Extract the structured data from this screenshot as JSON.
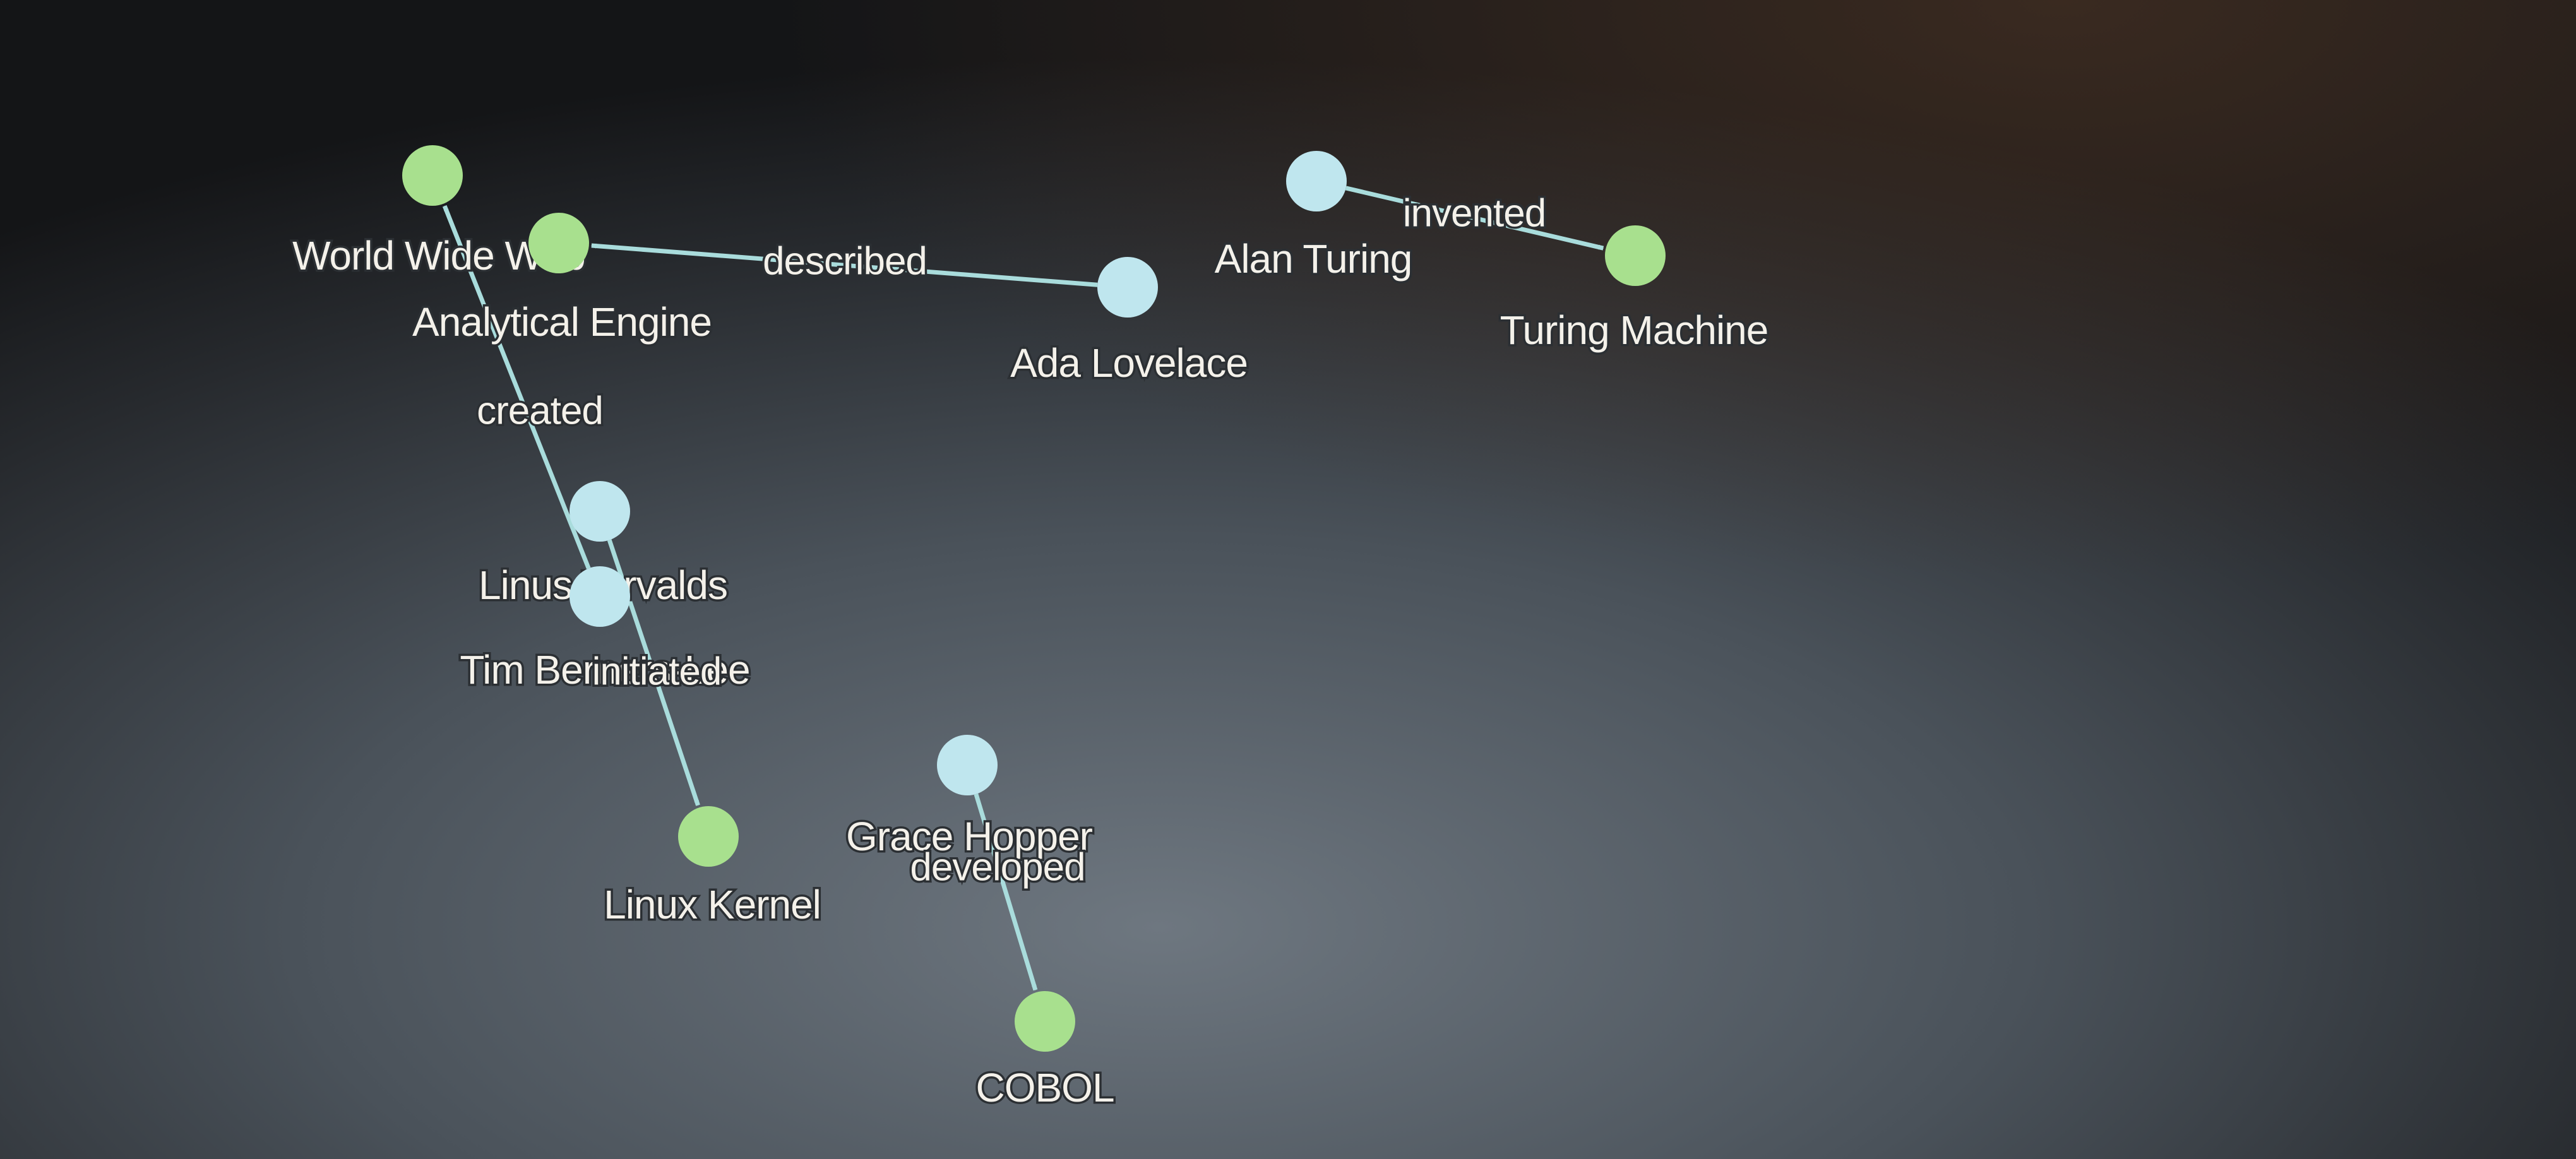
{
  "colors": {
    "person_node": "#bfe6ee",
    "concept_node": "#a8e08e",
    "edge": "#a9dcdc",
    "label_text": "#f4f1ea"
  },
  "graph": {
    "nodes": [
      {
        "id": "world-wide-web",
        "label": "World Wide Web",
        "kind": "concept"
      },
      {
        "id": "analytical-engine",
        "label": "Analytical Engine",
        "kind": "concept"
      },
      {
        "id": "ada-lovelace",
        "label": "Ada Lovelace",
        "kind": "person"
      },
      {
        "id": "alan-turing",
        "label": "Alan Turing",
        "kind": "person"
      },
      {
        "id": "turing-machine",
        "label": "Turing Machine",
        "kind": "concept"
      },
      {
        "id": "linus-torvalds",
        "label": "Linus Torvalds",
        "kind": "person"
      },
      {
        "id": "tim-berners-lee",
        "label": "Tim Berners-Lee",
        "kind": "person"
      },
      {
        "id": "linux-kernel",
        "label": "Linux Kernel",
        "kind": "concept"
      },
      {
        "id": "grace-hopper",
        "label": "Grace Hopper",
        "kind": "person"
      },
      {
        "id": "cobol",
        "label": "COBOL",
        "kind": "concept"
      }
    ],
    "edges": [
      {
        "source": "ada-lovelace",
        "target": "analytical-engine",
        "label": "described"
      },
      {
        "source": "alan-turing",
        "target": "turing-machine",
        "label": "invented"
      },
      {
        "source": "tim-berners-lee",
        "target": "world-wide-web",
        "label": "created"
      },
      {
        "source": "linus-torvalds",
        "target": "linux-kernel",
        "label": "initiated"
      },
      {
        "source": "grace-hopper",
        "target": "cobol",
        "label": "developed"
      }
    ]
  }
}
